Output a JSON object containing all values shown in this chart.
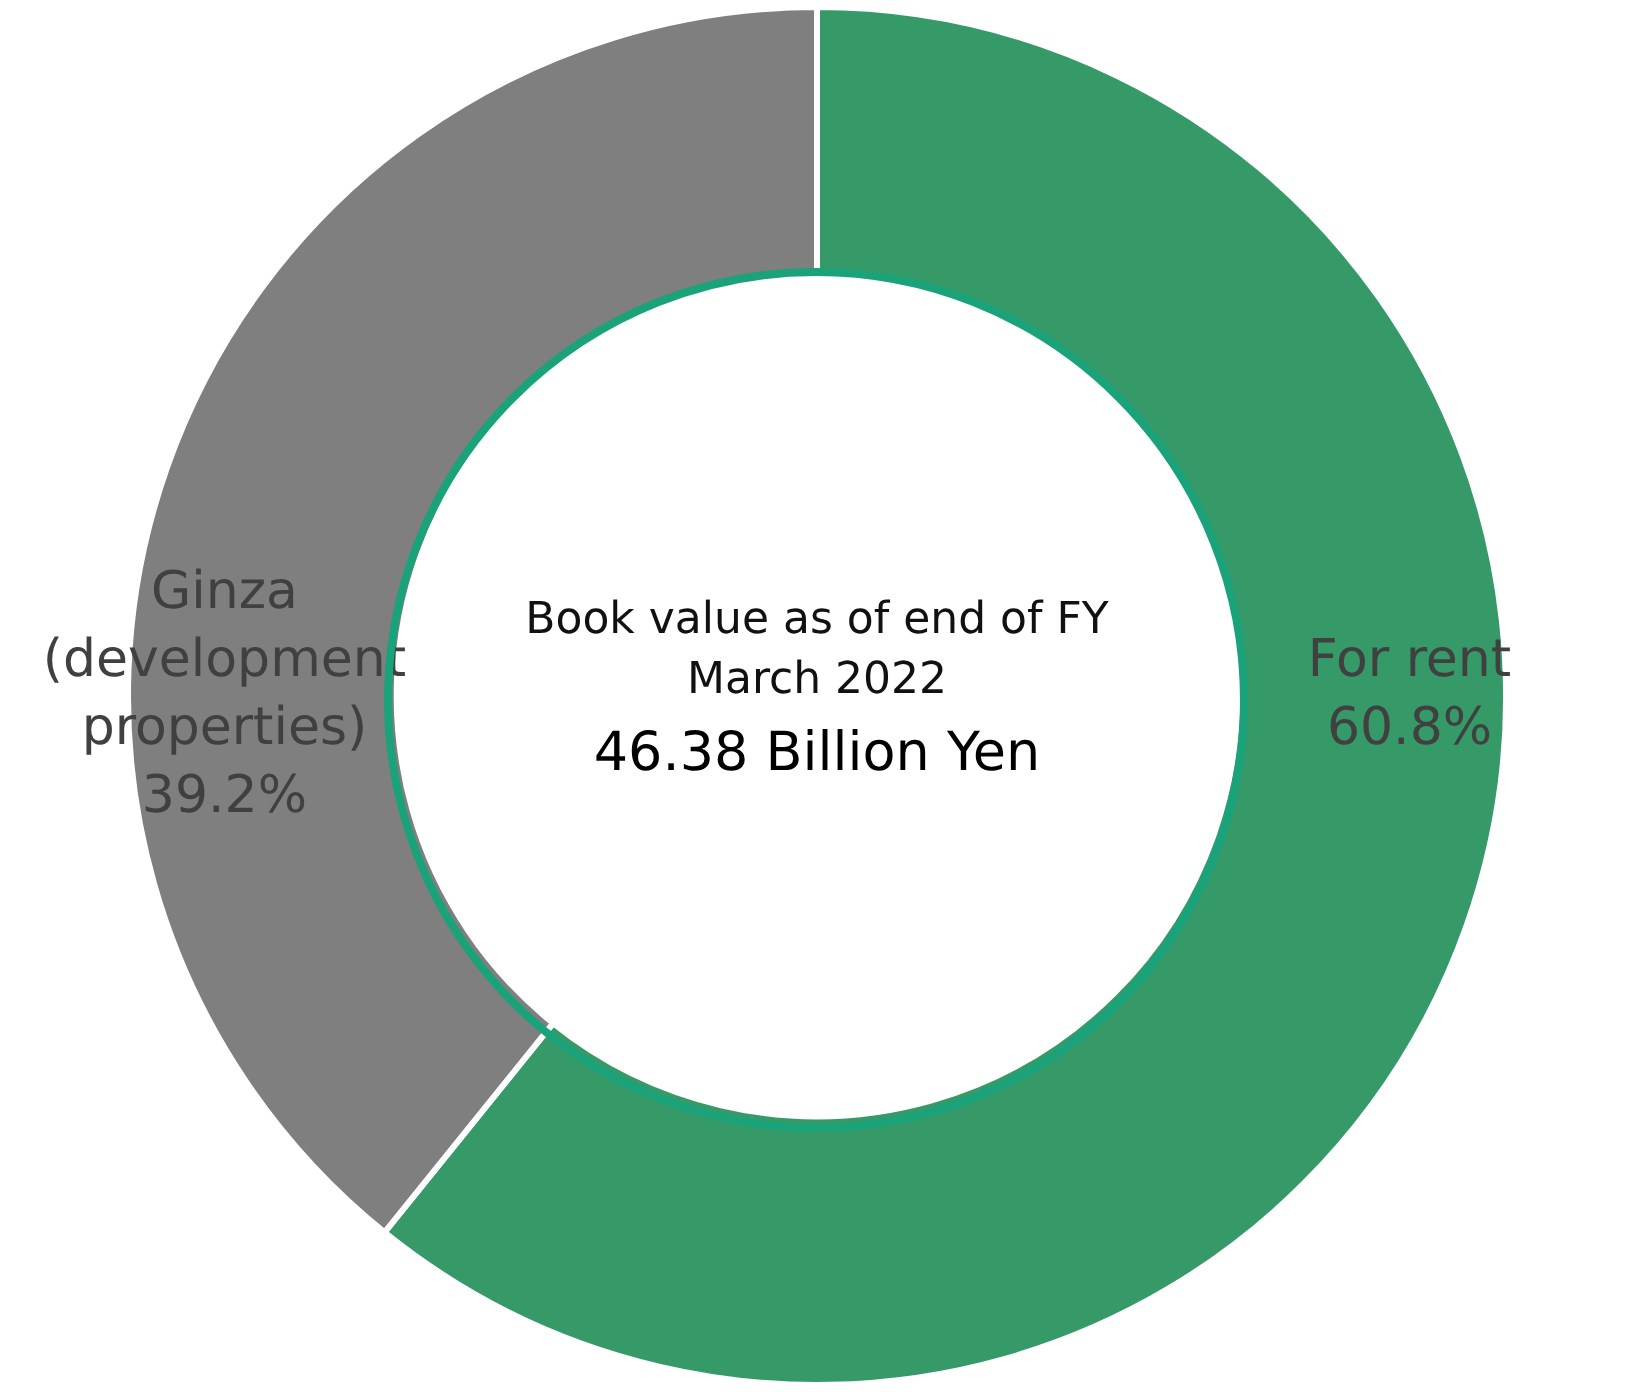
{
  "chart_data": {
    "type": "donut",
    "categories": [
      "For rent",
      "Ginza (development properties)"
    ],
    "values": [
      60.8,
      39.2
    ],
    "colors": [
      "#359a68",
      "#7f7f7f"
    ],
    "value_labels": [
      "60.8%",
      "39.2%"
    ],
    "annotations": [
      "Book value as of end of FY March 2022",
      "46.38 Billion Yen"
    ],
    "legend": false
  }
}
